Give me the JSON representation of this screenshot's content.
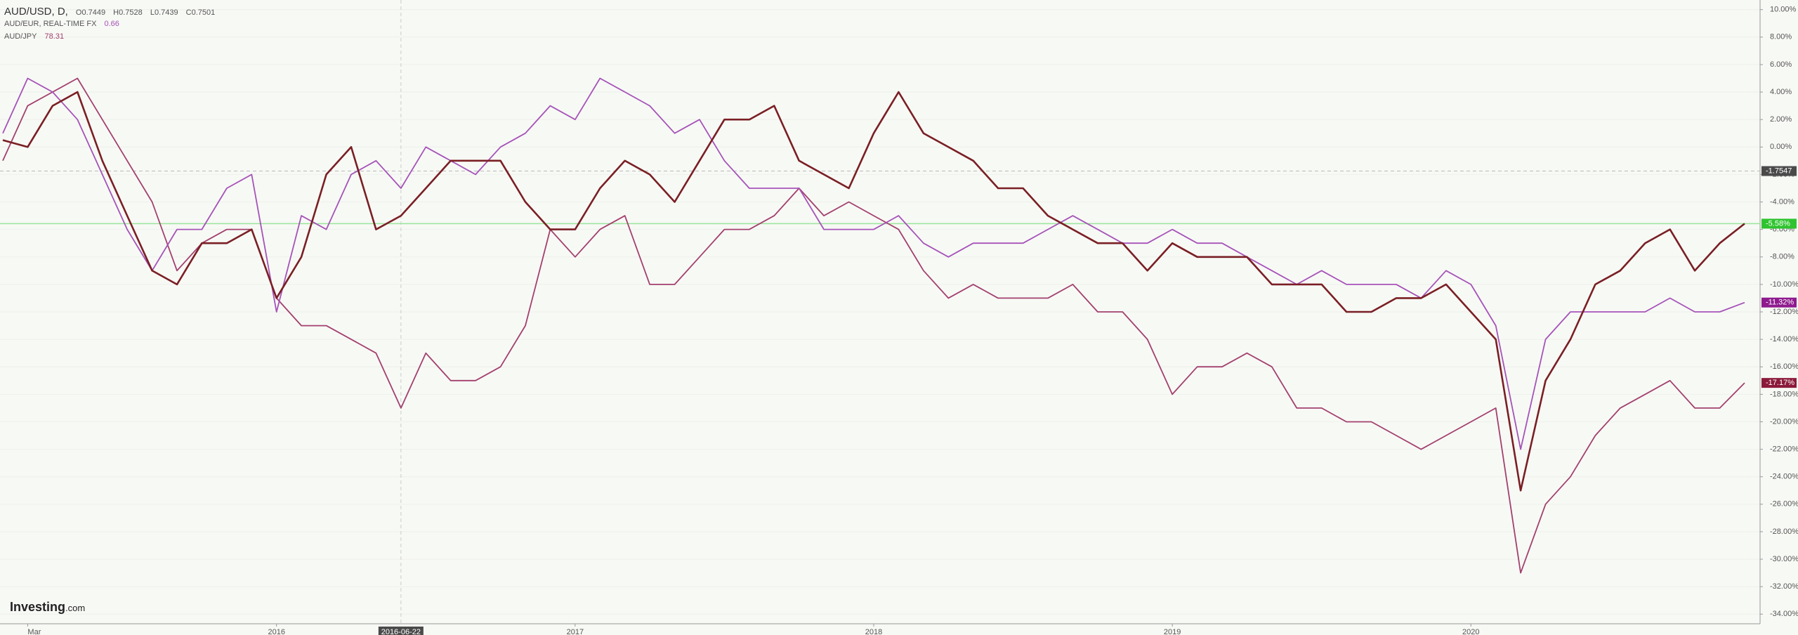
{
  "chart_data": {
    "type": "line",
    "categories": [
      null,
      "Mar",
      null,
      null,
      null,
      null,
      null,
      null,
      null,
      null,
      null,
      "2016",
      null,
      null,
      null,
      null,
      "2016-06-22",
      null,
      null,
      null,
      null,
      null,
      null,
      "2017",
      null,
      null,
      null,
      null,
      null,
      null,
      null,
      null,
      null,
      null,
      null,
      "2018",
      null,
      null,
      null,
      null,
      null,
      null,
      null,
      null,
      null,
      null,
      null,
      "2019",
      null,
      null,
      null,
      null,
      null,
      null,
      null,
      null,
      null,
      null,
      null,
      "2020",
      null,
      null,
      null,
      null,
      null,
      null,
      null,
      null,
      null,
      null,
      null
    ],
    "series": [
      {
        "name": "AUD/USD, D,",
        "color": "#7a1f24",
        "quote": [
          "O0.7449",
          "H0.7528",
          "L0.7439",
          "C0.7501"
        ],
        "last_label": "-5.58%",
        "badge_color": "#2fc42f",
        "values": [
          0.5,
          0,
          3,
          4,
          -1,
          -5,
          -9,
          -10,
          -7,
          -7,
          -6,
          -11,
          -8,
          -2,
          0,
          -6,
          -5,
          -3,
          -1,
          -1,
          -1,
          -4,
          -6,
          -6,
          -3,
          -1,
          -2,
          -4,
          -1,
          2,
          2,
          3,
          -1,
          -2,
          -3,
          1,
          4,
          1,
          0,
          -1,
          -3,
          -3,
          -5,
          -6,
          -7,
          -7,
          -9,
          -7,
          -8,
          -8,
          -8,
          -10,
          -10,
          -10,
          -12,
          -12,
          -11,
          -11,
          -10,
          -12,
          -14,
          -25,
          -17,
          -14,
          -10,
          -9,
          -7,
          -6,
          -9,
          -7,
          -5.58
        ]
      },
      {
        "name": "AUD/EUR, REAL-TIME FX",
        "color": "#a653b8",
        "quote": [
          "0.66"
        ],
        "last_label": "-11.32%",
        "badge_color": "#8e1b8e",
        "values": [
          1,
          5,
          4,
          2,
          -2,
          -6,
          -9,
          -6,
          -6,
          -3,
          -2,
          -12,
          -5,
          -6,
          -2,
          -1,
          -3,
          0,
          -1,
          -2,
          0,
          1,
          3,
          2,
          5,
          4,
          3,
          1,
          2,
          -1,
          -3,
          -3,
          -3,
          -6,
          -6,
          -6,
          -5,
          -7,
          -8,
          -7,
          -7,
          -7,
          -6,
          -5,
          -6,
          -7,
          -7,
          -6,
          -7,
          -7,
          -8,
          -9,
          -10,
          -9,
          -10,
          -10,
          -10,
          -11,
          -9,
          -10,
          -13,
          -22,
          -14,
          -12,
          -12,
          -12,
          -12,
          -11,
          -12,
          -12,
          -11.32
        ]
      },
      {
        "name": "AUD/JPY",
        "color": "#a3406e",
        "quote": [
          "78.31"
        ],
        "last_label": "-17.17%",
        "badge_color": "#8b1a3a",
        "values": [
          -1,
          3,
          4,
          5,
          2,
          -1,
          -4,
          -9,
          -7,
          -6,
          -6,
          -11,
          -13,
          -13,
          -14,
          -15,
          -19,
          -15,
          -17,
          -17,
          -16,
          -13,
          -6,
          -8,
          -6,
          -5,
          -10,
          -10,
          -8,
          -6,
          -6,
          -5,
          -3,
          -5,
          -4,
          -5,
          -6,
          -9,
          -11,
          -10,
          -11,
          -11,
          -11,
          -10,
          -12,
          -12,
          -14,
          -18,
          -16,
          -16,
          -15,
          -16,
          -19,
          -19,
          -20,
          -20,
          -21,
          -22,
          -21,
          -20,
          -19,
          -31,
          -26,
          -24,
          -21,
          -19,
          -18,
          -17,
          -19,
          -19,
          -17.17
        ]
      }
    ],
    "ylim": [
      -34.7,
      10.7
    ],
    "yticks": [
      {
        "value": 10,
        "label": "10.00%"
      },
      {
        "value": 8,
        "label": "8.00%"
      },
      {
        "value": 6,
        "label": "6.00%"
      },
      {
        "value": 4,
        "label": "4.00%"
      },
      {
        "value": 2,
        "label": "2.00%"
      },
      {
        "value": 0,
        "label": "0.00%"
      },
      {
        "value": -2,
        "label": "-2.00%"
      },
      {
        "value": -4,
        "label": "-4.00%"
      },
      {
        "value": -6,
        "label": "-6.00%"
      },
      {
        "value": -8,
        "label": "-8.00%"
      },
      {
        "value": -10,
        "label": "-10.00%"
      },
      {
        "value": -12,
        "label": "-12.00%"
      },
      {
        "value": -14,
        "label": "-14.00%"
      },
      {
        "value": -16,
        "label": "-16.00%"
      },
      {
        "value": -18,
        "label": "-18.00%"
      },
      {
        "value": -20,
        "label": "-20.00%"
      },
      {
        "value": -22,
        "label": "-22.00%"
      },
      {
        "value": -24,
        "label": "-24.00%"
      },
      {
        "value": -26,
        "label": "-26.00%"
      },
      {
        "value": -28,
        "label": "-28.00%"
      },
      {
        "value": -30,
        "label": "-30.00%"
      },
      {
        "value": -32,
        "label": "-32.00%"
      },
      {
        "value": -34,
        "label": "-34.00%"
      }
    ],
    "crosshair": {
      "value": -1.75,
      "label": "-1.7547",
      "category": 16
    },
    "grid": true,
    "watermark": [
      "Investing",
      ".com"
    ]
  }
}
